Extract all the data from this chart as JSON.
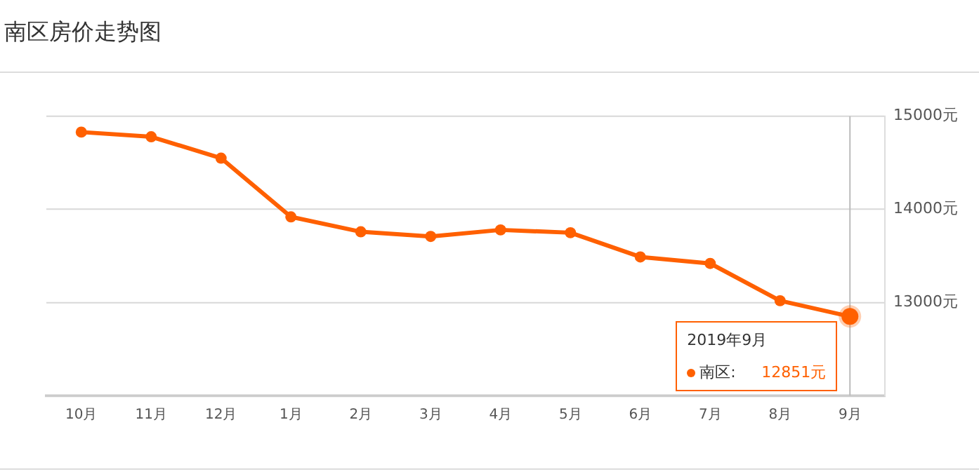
{
  "chart_data": {
    "type": "line",
    "title": "南区房价走势图",
    "categories": [
      "10月",
      "11月",
      "12月",
      "1月",
      "2月",
      "3月",
      "4月",
      "5月",
      "6月",
      "7月",
      "8月",
      "9月"
    ],
    "series": [
      {
        "name": "南区:",
        "color": "#ff6000",
        "values": [
          14830,
          14780,
          14550,
          13920,
          13760,
          13710,
          13780,
          13750,
          13490,
          13420,
          13020,
          12851
        ],
        "value_labels": [
          null,
          null,
          null,
          null,
          null,
          null,
          null,
          null,
          null,
          null,
          null,
          "12851元"
        ]
      }
    ],
    "ylim": [
      12000,
      15000
    ],
    "yticks": [
      {
        "value": 12000,
        "label": null
      },
      {
        "value": 13000,
        "label": "13000元"
      },
      {
        "value": 14000,
        "label": "14000元"
      },
      {
        "value": 15000,
        "label": "15000元"
      }
    ],
    "grid": "y",
    "legend": "bottom right",
    "marker": "circle",
    "line_style": "solid",
    "ref_lines": [
      {
        "axis": "x",
        "value": "9月",
        "color": "#bbbbbb"
      }
    ],
    "annotations": [
      "2019年9月"
    ]
  }
}
